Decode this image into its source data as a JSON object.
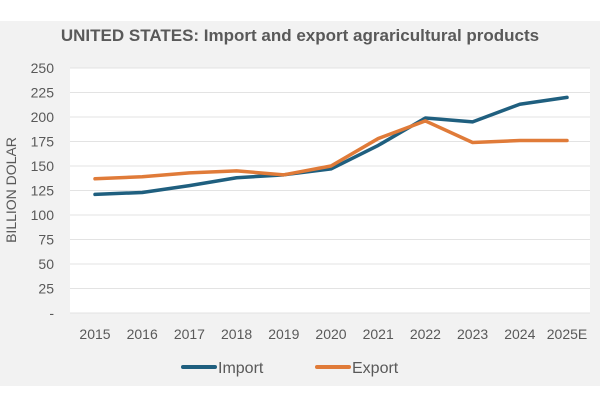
{
  "chart_data": {
    "type": "line",
    "title": "UNITED STATES: Import and export agraricultural products",
    "ylabel": "BILLION DOLAR",
    "xlabel": "",
    "categories": [
      "2015",
      "2016",
      "2017",
      "2018",
      "2019",
      "2020",
      "2021",
      "2022",
      "2023",
      "2024",
      "2025E"
    ],
    "ylim": [
      0,
      250
    ],
    "yticks": [
      "-",
      "25",
      "50",
      "75",
      "100",
      "125",
      "150",
      "175",
      "200",
      "225",
      "250"
    ],
    "grid": true,
    "legend_position": "bottom",
    "series": [
      {
        "name": "Import",
        "color": "#1f5f7f",
        "values": [
          121,
          123,
          130,
          138,
          141,
          147,
          171,
          199,
          195,
          213,
          220
        ]
      },
      {
        "name": "Export",
        "color": "#e07b39",
        "values": [
          137,
          139,
          143,
          145,
          141,
          150,
          178,
          196,
          174,
          176,
          176
        ]
      }
    ]
  }
}
